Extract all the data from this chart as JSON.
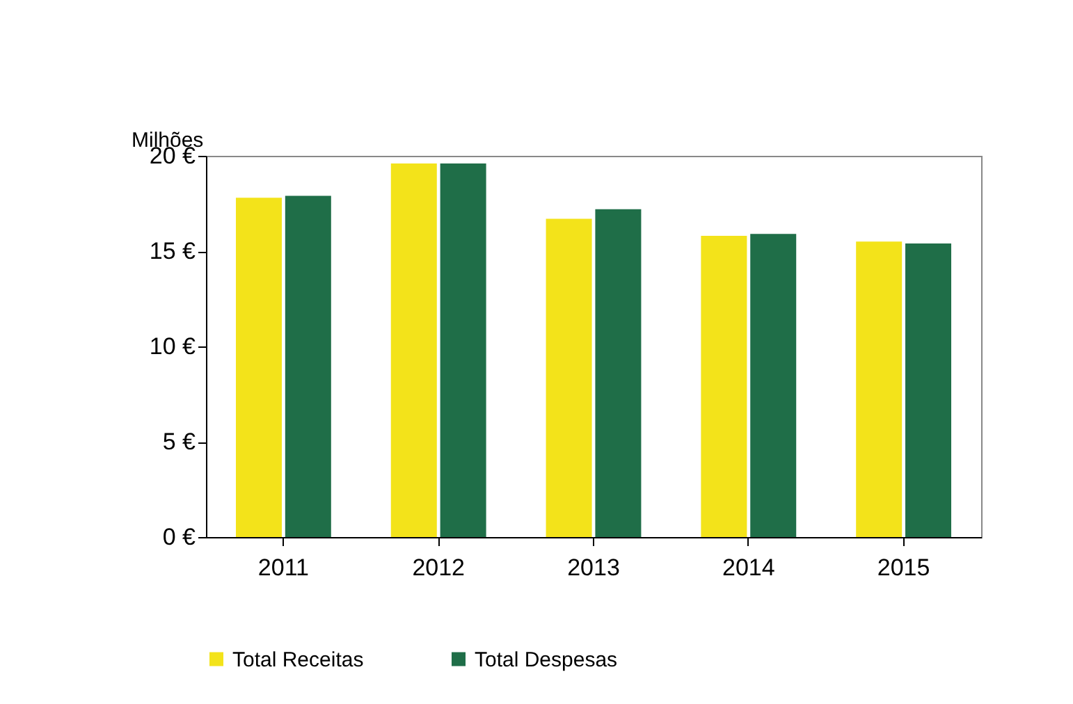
{
  "chart_data": {
    "type": "bar",
    "ylabel": "Milhões",
    "categories": [
      "2011",
      "2012",
      "2013",
      "2014",
      "2015"
    ],
    "series": [
      {
        "name": "Total Receitas",
        "color": "#f3e31a",
        "values": [
          17.8,
          19.6,
          16.7,
          15.8,
          15.5
        ]
      },
      {
        "name": "Total Despesas",
        "color": "#1f6e48",
        "values": [
          17.9,
          19.6,
          17.2,
          15.9,
          15.4
        ]
      }
    ],
    "ylim": [
      0,
      20
    ],
    "yticks": [
      {
        "value": 0,
        "label": "0 €"
      },
      {
        "value": 5,
        "label": "5 €"
      },
      {
        "value": 10,
        "label": "10 €"
      },
      {
        "value": 15,
        "label": "15 €"
      },
      {
        "value": 20,
        "label": "20 €"
      }
    ],
    "grid": false,
    "legend": "bottom"
  }
}
